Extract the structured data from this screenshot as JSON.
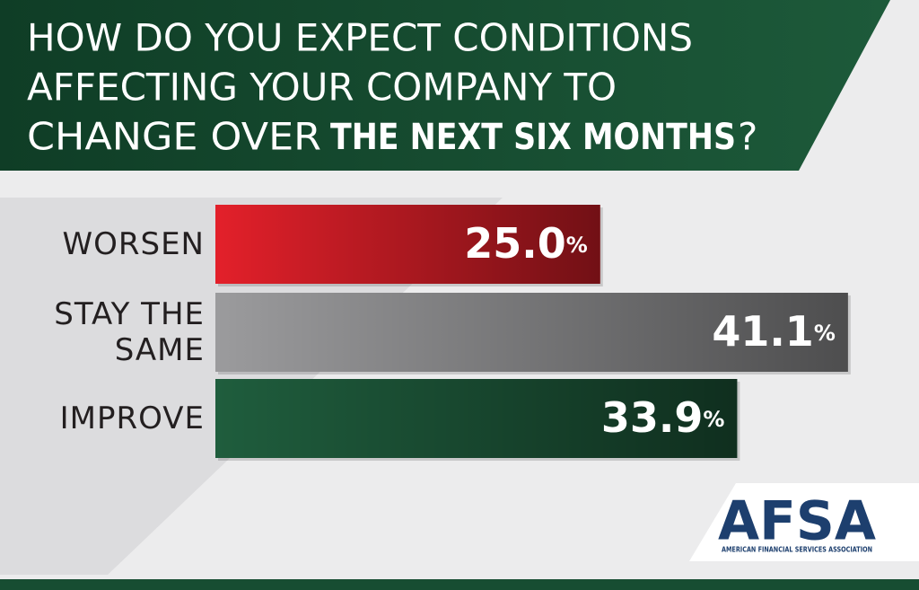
{
  "chart_data": {
    "type": "bar",
    "title_lines": [
      "HOW DO YOU EXPECT CONDITIONS",
      "AFFECTING YOUR COMPANY TO",
      "CHANGE OVER"
    ],
    "title_emphasis": "THE NEXT SIX MONTHS",
    "title_end": "?",
    "categories": [
      "WORSEN",
      "STAY THE SAME",
      "IMPROVE"
    ],
    "values": [
      25.0,
      41.1,
      33.9
    ],
    "value_labels": [
      "25.0%",
      "41.1%",
      "33.9%"
    ],
    "colors": [
      "#e3202a",
      "#9b9b9d",
      "#1f5d3d"
    ]
  },
  "logo": {
    "text": "AFSA",
    "tagline": "AMERICAN FINANCIAL SERVICES ASSOCIATION"
  }
}
